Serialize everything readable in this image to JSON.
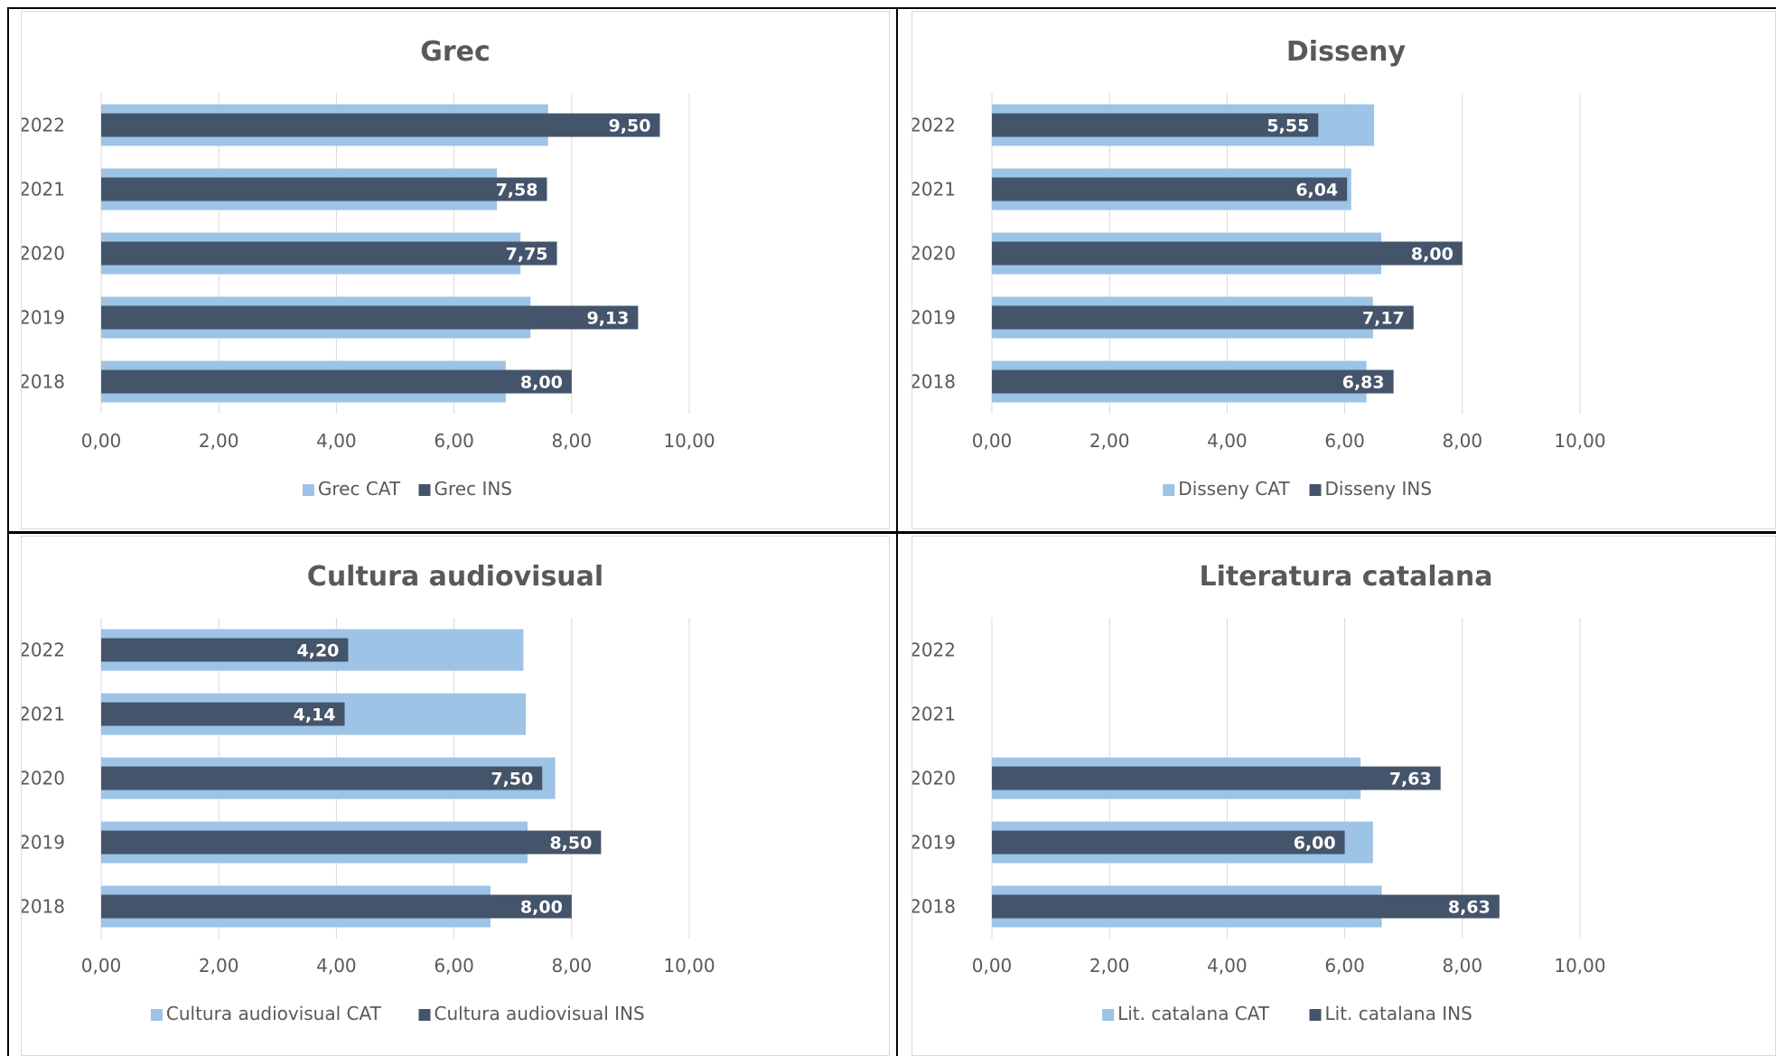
{
  "colors": {
    "cat": "#9dc3e6",
    "ins": "#44546a",
    "grid": "#d9d9d9",
    "text": "#595959"
  },
  "chart_data": [
    {
      "type": "bar",
      "orientation": "horizontal",
      "title": "Grec",
      "categories": [
        "2018",
        "2019",
        "2020",
        "2021",
        "2022"
      ],
      "xlim": [
        0,
        10
      ],
      "xticks": [
        "0,00",
        "2,00",
        "4,00",
        "6,00",
        "8,00",
        "10,00"
      ],
      "legend_position": "bottom",
      "series": [
        {
          "name": "Grec CAT",
          "values": [
            6.88,
            7.3,
            7.13,
            6.73,
            7.6
          ]
        },
        {
          "name": "Grec INS",
          "values": [
            8.0,
            9.13,
            7.75,
            7.58,
            9.5
          ],
          "labels": [
            "8,00",
            "9,13",
            "7,75",
            "7,58",
            "9,50"
          ]
        }
      ]
    },
    {
      "type": "bar",
      "orientation": "horizontal",
      "title": "Disseny",
      "categories": [
        "2018",
        "2019",
        "2020",
        "2021",
        "2022"
      ],
      "xlim": [
        0,
        10
      ],
      "xticks": [
        "0,00",
        "2,00",
        "4,00",
        "6,00",
        "8,00",
        "10,00"
      ],
      "legend_position": "bottom",
      "series": [
        {
          "name": "Disseny CAT",
          "values": [
            6.37,
            6.48,
            6.62,
            6.11,
            6.5
          ]
        },
        {
          "name": "Disseny INS",
          "values": [
            6.83,
            7.17,
            8.0,
            6.04,
            5.55
          ],
          "labels": [
            "6,83",
            "7,17",
            "8,00",
            "6,04",
            "5,55"
          ]
        }
      ]
    },
    {
      "type": "bar",
      "orientation": "horizontal",
      "title": "Cultura audiovisual",
      "categories": [
        "2018",
        "2019",
        "2020",
        "2021",
        "2022"
      ],
      "xlim": [
        0,
        10
      ],
      "xticks": [
        "0,00",
        "2,00",
        "4,00",
        "6,00",
        "8,00",
        "10,00"
      ],
      "legend_position": "bottom",
      "series": [
        {
          "name": "Cultura audiovisual CAT",
          "values": [
            6.62,
            7.25,
            7.72,
            7.22,
            7.18
          ]
        },
        {
          "name": "Cultura audiovisual INS",
          "values": [
            8.0,
            8.5,
            7.5,
            4.14,
            4.2
          ],
          "labels": [
            "8,00",
            "8,50",
            "7,50",
            "4,14",
            "4,20"
          ]
        }
      ]
    },
    {
      "type": "bar",
      "orientation": "horizontal",
      "title": "Literatura catalana",
      "categories": [
        "2018",
        "2019",
        "2020",
        "2021",
        "2022"
      ],
      "xlim": [
        0,
        10
      ],
      "xticks": [
        "0,00",
        "2,00",
        "4,00",
        "6,00",
        "8,00",
        "10,00"
      ],
      "legend_position": "bottom",
      "series": [
        {
          "name": "Lit. catalana CAT",
          "values": [
            6.63,
            6.48,
            6.27,
            null,
            null
          ]
        },
        {
          "name": "Lit. catalana INS",
          "values": [
            8.63,
            6.0,
            7.63,
            null,
            null
          ],
          "labels": [
            "8,63",
            "6,00",
            "7,63",
            "",
            ""
          ]
        }
      ]
    }
  ]
}
